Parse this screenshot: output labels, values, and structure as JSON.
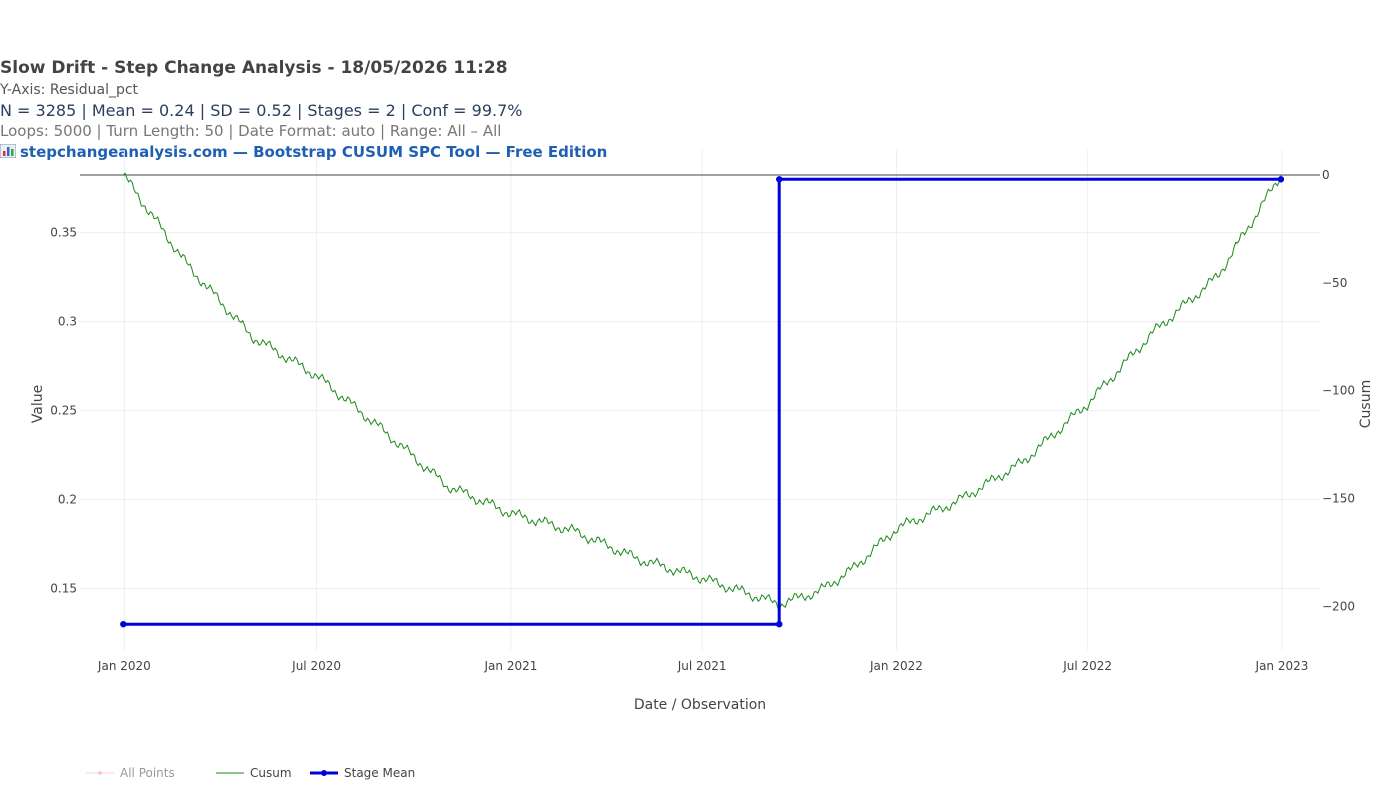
{
  "header": {
    "title": "Slow Drift - Step Change Analysis - 18/05/2026 11:28",
    "yaxis_line": "Y-Axis: Residual_pct",
    "stats_line": "N = 3285  |  Mean = 0.24  |  SD = 0.52  |  Stages = 2  |  Conf = 99.7%",
    "params_line": "Loops: 5000  |  Turn Length: 50  |  Date Format: auto  |  Range: All – All",
    "brand_line": "stepchangeanalysis.com — Bootstrap CUSUM SPC Tool — Free Edition"
  },
  "chart_data": {
    "type": "line",
    "xlabel": "Date / Observation",
    "ylabel": "Value",
    "y2label": "Cusum",
    "x_ticks": [
      "Jan 2020",
      "Jul 2020",
      "Jan 2021",
      "Jul 2021",
      "Jan 2022",
      "Jul 2022",
      "Jan 2023"
    ],
    "x_tick_dates": [
      "2020-01-01",
      "2020-07-01",
      "2021-01-01",
      "2021-07-01",
      "2022-01-01",
      "2022-07-01",
      "2023-01-01"
    ],
    "x_range": [
      "2019-11-20",
      "2023-02-06"
    ],
    "y_ticks": [
      "0.15",
      "0.2",
      "0.25",
      "0.3",
      "0.35"
    ],
    "y_tick_values": [
      0.15,
      0.2,
      0.25,
      0.3,
      0.35
    ],
    "y_range": [
      0.1155,
      0.3824
    ],
    "y2_ticks": [
      "0",
      "−50",
      "−100",
      "−150",
      "−200"
    ],
    "y2_tick_values": [
      0,
      -50,
      -100,
      -150,
      -200
    ],
    "y2_range": [
      -211,
      0
    ],
    "grid": true,
    "legend_position": "bottom-left",
    "series": [
      {
        "name": "All Points",
        "axis": "y",
        "color": "#f4a6b0",
        "visible": false
      },
      {
        "name": "Cusum",
        "axis": "y2",
        "color": "#1a8a1a",
        "x": [
          "2019-12-31",
          "2020-03-01",
          "2020-05-01",
          "2020-07-01",
          "2020-09-01",
          "2020-11-01",
          "2021-01-01",
          "2021-03-01",
          "2021-05-01",
          "2021-07-01",
          "2021-09-12",
          "2021-10-20",
          "2021-11-20",
          "2022-01-01",
          "2022-03-01",
          "2022-05-01",
          "2022-07-01",
          "2022-09-01",
          "2022-11-01",
          "2022-12-31"
        ],
        "values": [
          0,
          -42,
          -75,
          -93,
          -118,
          -144,
          -157,
          -165,
          -178,
          -187,
          -199,
          -193,
          -183,
          -164,
          -151,
          -133,
          -106,
          -73,
          -47,
          0
        ]
      },
      {
        "name": "Stage Mean",
        "axis": "y",
        "color": "#0000dd",
        "x": [
          "2019-12-31",
          "2021-09-12",
          "2021-09-12",
          "2022-12-31"
        ],
        "values": [
          0.13,
          0.13,
          0.38,
          0.38
        ]
      }
    ]
  }
}
